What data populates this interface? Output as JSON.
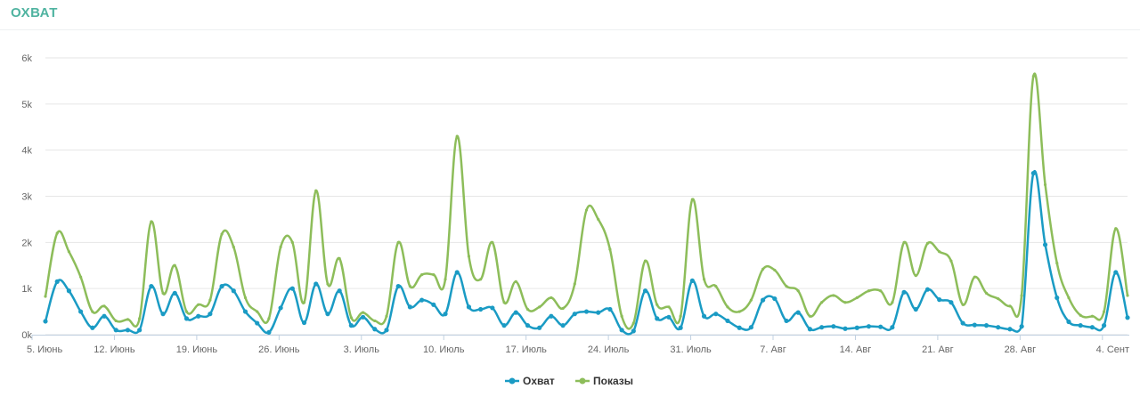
{
  "header": {
    "title": "ОХВАТ"
  },
  "chart_data": {
    "type": "line",
    "title": "",
    "xlabel": "",
    "ylabel": "",
    "ylim": [
      0,
      6000
    ],
    "yticks": [
      {
        "value": 0,
        "label": "0k"
      },
      {
        "value": 1000,
        "label": "1k"
      },
      {
        "value": 2000,
        "label": "2k"
      },
      {
        "value": 3000,
        "label": "3k"
      },
      {
        "value": 4000,
        "label": "4k"
      },
      {
        "value": 5000,
        "label": "5k"
      },
      {
        "value": 6000,
        "label": "6k"
      }
    ],
    "xticks": [
      {
        "index": 0,
        "label": "5. Июнь"
      },
      {
        "index": 7,
        "label": "12. Июнь"
      },
      {
        "index": 14,
        "label": "19. Июнь"
      },
      {
        "index": 21,
        "label": "26. Июнь"
      },
      {
        "index": 28,
        "label": "3. Июль"
      },
      {
        "index": 35,
        "label": "10. Июль"
      },
      {
        "index": 42,
        "label": "17. Июль"
      },
      {
        "index": 49,
        "label": "24. Июль"
      },
      {
        "index": 56,
        "label": "31. Июль"
      },
      {
        "index": 63,
        "label": "7. Авг"
      },
      {
        "index": 70,
        "label": "14. Авг"
      },
      {
        "index": 77,
        "label": "21. Авг"
      },
      {
        "index": 84,
        "label": "28. Авг"
      },
      {
        "index": 91,
        "label": "4. Сент"
      }
    ],
    "grid": true,
    "legend": "bottom-center",
    "series": [
      {
        "name": "Охват",
        "color": "#1a9bc4",
        "values": [
          290,
          1150,
          950,
          500,
          150,
          400,
          100,
          100,
          100,
          1050,
          450,
          900,
          350,
          400,
          450,
          1050,
          950,
          500,
          250,
          50,
          580,
          1000,
          260,
          1100,
          450,
          950,
          200,
          380,
          120,
          100,
          1050,
          600,
          750,
          650,
          450,
          1350,
          600,
          550,
          580,
          200,
          480,
          200,
          150,
          400,
          200,
          450,
          500,
          480,
          550,
          100,
          80,
          950,
          350,
          380,
          150,
          1170,
          400,
          450,
          300,
          150,
          160,
          750,
          780,
          300,
          480,
          120,
          160,
          180,
          130,
          150,
          180,
          170,
          160,
          920,
          550,
          980,
          760,
          700,
          250,
          210,
          200,
          160,
          120,
          180,
          3500,
          1950,
          800,
          280,
          200,
          160,
          200,
          1350,
          370
        ]
      },
      {
        "name": "Показы",
        "color": "#8dbd5a",
        "values": [
          830,
          2200,
          1800,
          1250,
          500,
          620,
          300,
          330,
          350,
          2450,
          900,
          1500,
          500,
          650,
          750,
          2180,
          1900,
          800,
          500,
          350,
          1900,
          2000,
          700,
          3120,
          1100,
          1650,
          370,
          480,
          300,
          400,
          2000,
          1050,
          1300,
          1300,
          1200,
          4300,
          1700,
          1200,
          2000,
          700,
          1150,
          550,
          600,
          800,
          570,
          1100,
          2700,
          2500,
          1850,
          400,
          250,
          1600,
          650,
          600,
          400,
          2930,
          1200,
          1050,
          600,
          500,
          750,
          1420,
          1400,
          1050,
          950,
          400,
          700,
          850,
          700,
          800,
          950,
          950,
          700,
          2000,
          1280,
          1980,
          1800,
          1600,
          650,
          1250,
          900,
          780,
          620,
          850,
          5600,
          3250,
          1550,
          800,
          420,
          400,
          500,
          2300,
          850
        ]
      }
    ]
  }
}
